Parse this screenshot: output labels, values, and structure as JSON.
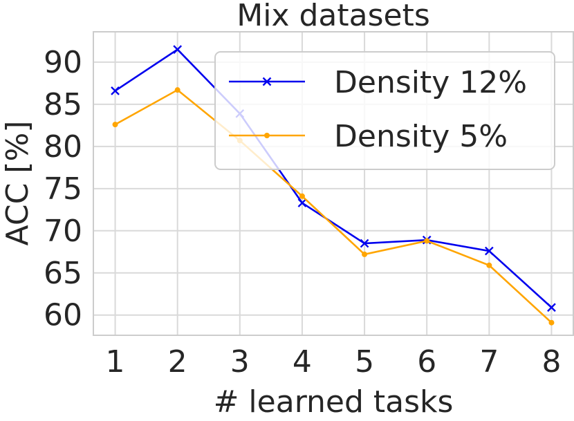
{
  "chart_data": {
    "type": "line",
    "title": "Mix datasets",
    "xlabel": "# learned tasks",
    "ylabel": "ACC [%]",
    "x": [
      1,
      2,
      3,
      4,
      5,
      6,
      7,
      8
    ],
    "xticks": [
      "1",
      "2",
      "3",
      "4",
      "5",
      "6",
      "7",
      "8"
    ],
    "yticks": [
      "60",
      "65",
      "70",
      "75",
      "80",
      "85",
      "90"
    ],
    "yticks_values": [
      60,
      65,
      70,
      75,
      80,
      85,
      90
    ],
    "xlim": [
      0.65,
      8.35
    ],
    "ylim": [
      57.6,
      93.6
    ],
    "grid": true,
    "legend_position": "upper-right",
    "series": [
      {
        "name": "Density 12%",
        "color": "#0000ee",
        "marker": "x",
        "values": [
          86.6,
          91.5,
          83.9,
          73.3,
          68.5,
          68.9,
          67.6,
          60.9
        ]
      },
      {
        "name": "Density 5%",
        "color": "#ffa500",
        "marker": "dot",
        "values": [
          82.6,
          86.7,
          80.7,
          74.1,
          67.2,
          68.8,
          65.9,
          59.1
        ]
      }
    ]
  }
}
